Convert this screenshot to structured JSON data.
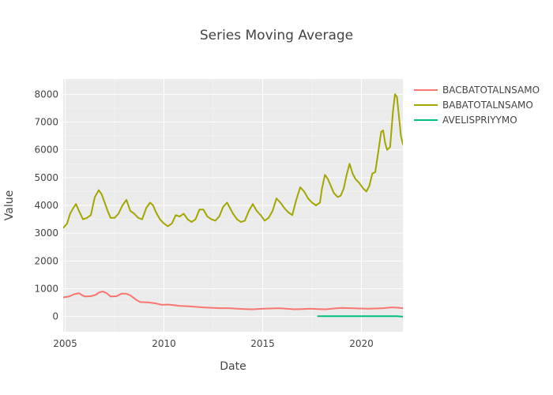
{
  "chart_data": {
    "type": "line",
    "title": "Series Moving Average",
    "xlabel": "Date",
    "ylabel": "Value",
    "x_ticks": [
      "2005",
      "2010",
      "2015",
      "2020"
    ],
    "y_ticks": [
      "0",
      "1000",
      "2000",
      "3000",
      "4000",
      "5000",
      "6000",
      "7000",
      "8000"
    ],
    "xlim": [
      2004.9,
      2022.1
    ],
    "ylim": [
      -550,
      8550
    ],
    "grid": true,
    "legend_position": "right",
    "series": [
      {
        "name": "BACBATOTALNSAMO",
        "color": "#F8766D",
        "points": [
          [
            2004.92,
            690
          ],
          [
            2005.2,
            720
          ],
          [
            2005.45,
            800
          ],
          [
            2005.7,
            840
          ],
          [
            2005.85,
            770
          ],
          [
            2006.0,
            720
          ],
          [
            2006.3,
            730
          ],
          [
            2006.55,
            780
          ],
          [
            2006.7,
            860
          ],
          [
            2006.9,
            900
          ],
          [
            2007.1,
            840
          ],
          [
            2007.3,
            720
          ],
          [
            2007.6,
            730
          ],
          [
            2007.85,
            820
          ],
          [
            2008.1,
            820
          ],
          [
            2008.3,
            760
          ],
          [
            2008.6,
            600
          ],
          [
            2008.8,
            520
          ],
          [
            2009.2,
            510
          ],
          [
            2009.6,
            470
          ],
          [
            2009.9,
            420
          ],
          [
            2010.2,
            430
          ],
          [
            2010.5,
            410
          ],
          [
            2010.8,
            380
          ],
          [
            2011.2,
            370
          ],
          [
            2011.6,
            350
          ],
          [
            2012.0,
            330
          ],
          [
            2012.5,
            310
          ],
          [
            2012.9,
            300
          ],
          [
            2013.3,
            300
          ],
          [
            2013.7,
            280
          ],
          [
            2014.1,
            270
          ],
          [
            2014.5,
            260
          ],
          [
            2015.0,
            280
          ],
          [
            2015.4,
            290
          ],
          [
            2015.8,
            300
          ],
          [
            2016.2,
            280
          ],
          [
            2016.6,
            260
          ],
          [
            2017.0,
            270
          ],
          [
            2017.4,
            280
          ],
          [
            2017.8,
            270
          ],
          [
            2018.2,
            260
          ],
          [
            2018.6,
            290
          ],
          [
            2019.0,
            310
          ],
          [
            2019.5,
            300
          ],
          [
            2019.9,
            290
          ],
          [
            2020.3,
            280
          ],
          [
            2020.7,
            290
          ],
          [
            2021.1,
            300
          ],
          [
            2021.5,
            330
          ],
          [
            2021.8,
            320
          ],
          [
            2022.1,
            300
          ]
        ]
      },
      {
        "name": "BABATOTALNSAMO",
        "color": "#A3A500",
        "points": [
          [
            2004.92,
            3200
          ],
          [
            2005.1,
            3350
          ],
          [
            2005.25,
            3700
          ],
          [
            2005.45,
            3950
          ],
          [
            2005.55,
            4050
          ],
          [
            2005.7,
            3800
          ],
          [
            2005.9,
            3500
          ],
          [
            2006.1,
            3550
          ],
          [
            2006.3,
            3650
          ],
          [
            2006.5,
            4300
          ],
          [
            2006.7,
            4550
          ],
          [
            2006.85,
            4400
          ],
          [
            2007.0,
            4100
          ],
          [
            2007.15,
            3800
          ],
          [
            2007.3,
            3550
          ],
          [
            2007.5,
            3550
          ],
          [
            2007.7,
            3700
          ],
          [
            2007.9,
            4000
          ],
          [
            2008.1,
            4200
          ],
          [
            2008.3,
            3800
          ],
          [
            2008.5,
            3700
          ],
          [
            2008.7,
            3550
          ],
          [
            2008.9,
            3500
          ],
          [
            2009.1,
            3900
          ],
          [
            2009.3,
            4100
          ],
          [
            2009.45,
            4000
          ],
          [
            2009.6,
            3750
          ],
          [
            2009.8,
            3500
          ],
          [
            2010.0,
            3350
          ],
          [
            2010.2,
            3250
          ],
          [
            2010.4,
            3350
          ],
          [
            2010.6,
            3650
          ],
          [
            2010.8,
            3600
          ],
          [
            2011.0,
            3700
          ],
          [
            2011.2,
            3500
          ],
          [
            2011.4,
            3400
          ],
          [
            2011.6,
            3500
          ],
          [
            2011.8,
            3850
          ],
          [
            2012.0,
            3850
          ],
          [
            2012.2,
            3600
          ],
          [
            2012.4,
            3500
          ],
          [
            2012.6,
            3450
          ],
          [
            2012.8,
            3600
          ],
          [
            2013.0,
            3950
          ],
          [
            2013.2,
            4100
          ],
          [
            2013.35,
            3900
          ],
          [
            2013.5,
            3700
          ],
          [
            2013.7,
            3500
          ],
          [
            2013.9,
            3400
          ],
          [
            2014.1,
            3450
          ],
          [
            2014.3,
            3800
          ],
          [
            2014.5,
            4050
          ],
          [
            2014.7,
            3800
          ],
          [
            2014.9,
            3650
          ],
          [
            2015.1,
            3450
          ],
          [
            2015.3,
            3550
          ],
          [
            2015.5,
            3800
          ],
          [
            2015.7,
            4250
          ],
          [
            2015.9,
            4100
          ],
          [
            2016.1,
            3900
          ],
          [
            2016.3,
            3750
          ],
          [
            2016.5,
            3650
          ],
          [
            2016.7,
            4200
          ],
          [
            2016.9,
            4650
          ],
          [
            2017.1,
            4500
          ],
          [
            2017.3,
            4250
          ],
          [
            2017.5,
            4100
          ],
          [
            2017.7,
            4000
          ],
          [
            2017.9,
            4100
          ],
          [
            2018.0,
            4600
          ],
          [
            2018.15,
            5100
          ],
          [
            2018.3,
            4950
          ],
          [
            2018.45,
            4700
          ],
          [
            2018.6,
            4450
          ],
          [
            2018.8,
            4300
          ],
          [
            2018.95,
            4350
          ],
          [
            2019.1,
            4600
          ],
          [
            2019.25,
            5100
          ],
          [
            2019.4,
            5500
          ],
          [
            2019.55,
            5150
          ],
          [
            2019.7,
            4950
          ],
          [
            2019.9,
            4800
          ],
          [
            2020.1,
            4600
          ],
          [
            2020.25,
            4500
          ],
          [
            2020.4,
            4700
          ],
          [
            2020.55,
            5150
          ],
          [
            2020.7,
            5200
          ],
          [
            2020.85,
            5900
          ],
          [
            2021.0,
            6650
          ],
          [
            2021.1,
            6700
          ],
          [
            2021.2,
            6250
          ],
          [
            2021.3,
            6000
          ],
          [
            2021.45,
            6100
          ],
          [
            2021.6,
            7400
          ],
          [
            2021.7,
            8000
          ],
          [
            2021.8,
            7900
          ],
          [
            2021.9,
            7200
          ],
          [
            2022.0,
            6500
          ],
          [
            2022.1,
            6200
          ]
        ]
      },
      {
        "name": "AVELISPRIYYMO",
        "color": "#00BF7D",
        "points": [
          [
            2017.8,
            10
          ],
          [
            2018.5,
            10
          ],
          [
            2019.5,
            12
          ],
          [
            2020.5,
            12
          ],
          [
            2021.3,
            14
          ],
          [
            2021.8,
            12
          ],
          [
            2022.1,
            -5
          ]
        ]
      }
    ]
  }
}
